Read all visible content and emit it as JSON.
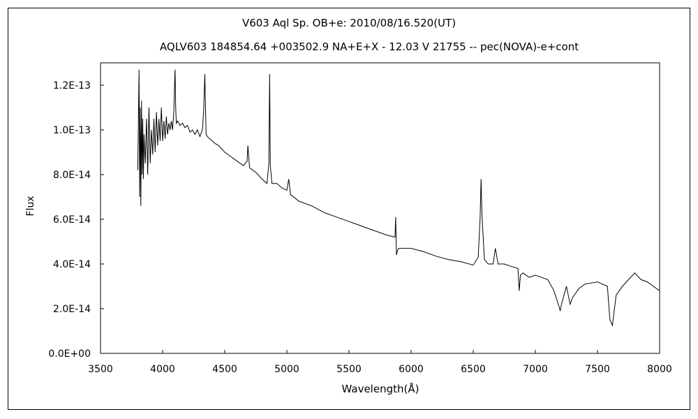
{
  "chart_data": {
    "type": "line",
    "title": "V603 Aql    Sp. OB+e:    2010/08/16.520(UT)",
    "subtitle": "AQLV603 184854.64 +003502.9 NA+E+X - 12.03 V 21755 -- pec(NOVA)-e+cont",
    "xlabel": "Wavelength(Å)",
    "ylabel": "Flux",
    "xlim": [
      3500,
      8000
    ],
    "ylim": [
      0,
      1.3e-13
    ],
    "x_ticks": [
      3500,
      4000,
      4500,
      5000,
      5500,
      6000,
      6500,
      7000,
      7500,
      8000
    ],
    "x_tick_labels": [
      "3500",
      "4000",
      "4500",
      "5000",
      "5500",
      "6000",
      "6500",
      "7000",
      "7500",
      "8000"
    ],
    "y_ticks": [
      0,
      2e-14,
      4e-14,
      6e-14,
      8e-14,
      1e-13,
      1.2e-13
    ],
    "y_tick_labels": [
      "0.0E+00",
      "2.0E-14",
      "4.0E-14",
      "6.0E-14",
      "8.0E-14",
      "1.0E-13",
      "1.2E-13"
    ],
    "grid": false,
    "series": [
      {
        "color": "#000000",
        "x": [
          3800,
          3810,
          3815,
          3820,
          3825,
          3830,
          3835,
          3840,
          3845,
          3850,
          3860,
          3870,
          3880,
          3890,
          3900,
          3910,
          3920,
          3930,
          3940,
          3950,
          3960,
          3970,
          3980,
          3990,
          4000,
          4010,
          4020,
          4030,
          4040,
          4050,
          4060,
          4070,
          4080,
          4090,
          4100,
          4105,
          4110,
          4120,
          4140,
          4160,
          4180,
          4200,
          4220,
          4240,
          4260,
          4280,
          4300,
          4320,
          4330,
          4340,
          4345,
          4350,
          4360,
          4380,
          4400,
          4420,
          4450,
          4500,
          4550,
          4600,
          4650,
          4680,
          4686,
          4700,
          4750,
          4800,
          4840,
          4855,
          4861,
          4867,
          4880,
          4920,
          4960,
          5000,
          5015,
          5030,
          5100,
          5200,
          5300,
          5400,
          5500,
          5600,
          5700,
          5800,
          5870,
          5876,
          5882,
          5890,
          5900,
          6000,
          6100,
          6200,
          6300,
          6400,
          6500,
          6540,
          6555,
          6563,
          6570,
          6590,
          6620,
          6660,
          6678,
          6700,
          6750,
          6800,
          6860,
          6870,
          6880,
          6900,
          6950,
          7000,
          7050,
          7100,
          7150,
          7190,
          7200,
          7210,
          7250,
          7280,
          7300,
          7350,
          7400,
          7500,
          7580,
          7600,
          7620,
          7650,
          7700,
          7750,
          7800,
          7850,
          7900,
          7950,
          8000
        ],
        "y": [
          8.2e-14,
          1.27e-13,
          7e-14,
          1.1e-13,
          6.6e-14,
          1.13e-13,
          8e-14,
          1.05e-13,
          7.8e-14,
          9.8e-14,
          8.5e-14,
          1.05e-13,
          8e-14,
          1.1e-13,
          8.5e-14,
          1e-13,
          8.9e-14,
          1.05e-13,
          9e-14,
          1.08e-13,
          9.3e-14,
          1.05e-13,
          9.5e-14,
          1.1e-13,
          9.5e-14,
          1.04e-13,
          9.6e-14,
          1.06e-13,
          9.8e-14,
          1.03e-13,
          1e-13,
          1.04e-13,
          1e-13,
          1.08e-13,
          1.27e-13,
          1.1e-13,
          1.03e-13,
          1.04e-13,
          1.02e-13,
          1.03e-13,
          1.01e-13,
          1.02e-13,
          9.9e-14,
          1e-13,
          9.8e-14,
          1e-13,
          9.7e-14,
          1e-13,
          1.08e-13,
          1.25e-13,
          1.1e-13,
          9.8e-14,
          9.7e-14,
          9.6e-14,
          9.5e-14,
          9.4e-14,
          9.3e-14,
          9e-14,
          8.8e-14,
          8.6e-14,
          8.4e-14,
          8.6e-14,
          9.3e-14,
          8.3e-14,
          8.1e-14,
          7.8e-14,
          7.6e-14,
          8.5e-14,
          1.25e-13,
          8.4e-14,
          7.6e-14,
          7.6e-14,
          7.4e-14,
          7.3e-14,
          7.8e-14,
          7.1e-14,
          6.8e-14,
          6.6e-14,
          6.3e-14,
          6.1e-14,
          5.9e-14,
          5.7e-14,
          5.5e-14,
          5.3e-14,
          5.2e-14,
          6.1e-14,
          4.4e-14,
          4.6e-14,
          4.7e-14,
          4.7e-14,
          4.55e-14,
          4.35e-14,
          4.2e-14,
          4.1e-14,
          3.95e-14,
          4.3e-14,
          6e-14,
          7.8e-14,
          6.2e-14,
          4.2e-14,
          4e-14,
          4e-14,
          4.7e-14,
          4e-14,
          4e-14,
          3.9e-14,
          3.8e-14,
          2.8e-14,
          3.5e-14,
          3.6e-14,
          3.4e-14,
          3.5e-14,
          3.4e-14,
          3.3e-14,
          2.8e-14,
          2.1e-14,
          1.9e-14,
          2.2e-14,
          3e-14,
          2.2e-14,
          2.5e-14,
          2.9e-14,
          3.1e-14,
          3.2e-14,
          3e-14,
          1.5e-14,
          1.25e-14,
          2.6e-14,
          3e-14,
          3.3e-14,
          3.6e-14,
          3.3e-14,
          3.2e-14,
          3e-14,
          2.8e-14
        ]
      }
    ]
  }
}
